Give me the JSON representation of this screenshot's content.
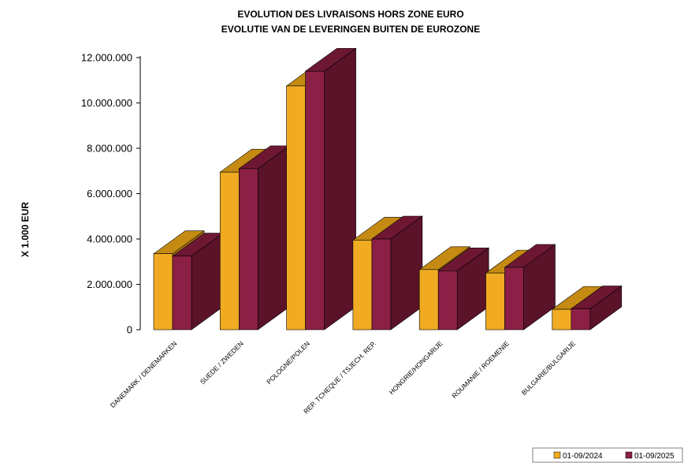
{
  "chart_data": {
    "type": "bar",
    "title": "EVOLUTION DES LIVRAISONS HORS ZONE EURO",
    "subtitle": "EVOLUTIE VAN DE LEVERINGEN BUITEN DE EUROZONE",
    "xlabel": "",
    "ylabel": "X 1.000 EUR",
    "ylim": [
      0,
      12000000
    ],
    "yticks": [
      "0",
      "2.000.000",
      "4.000.000",
      "6.000.000",
      "8.000.000",
      "10.000.000",
      "12.000.000"
    ],
    "categories": [
      "DANEMARK / DENEMARKEN",
      "SUEDE / ZWEDEN",
      "POLOGNE/POLEN",
      "REP. TCHEQUE / TSJECH. REP.",
      "HONGRIE/HONGARIJE",
      "ROUMANIE / ROEMENIE",
      "BULGARIE/BULGARIJE"
    ],
    "series": [
      {
        "name": "01-09/2024",
        "values": [
          3350000,
          6950000,
          10750000,
          3950000,
          2650000,
          2500000,
          900000
        ]
      },
      {
        "name": "01-09/2025",
        "values": [
          3250000,
          7100000,
          11400000,
          4000000,
          2600000,
          2750000,
          920000
        ]
      }
    ],
    "grid": false,
    "legend_position": "bottom-right",
    "colors": {
      "s1_front": "#f0ab22",
      "s1_top": "#c48a12",
      "s1_side": "#b07a10",
      "s2_front": "#8c1f45",
      "s2_top": "#6e1733",
      "s2_side": "#5a1329"
    }
  }
}
